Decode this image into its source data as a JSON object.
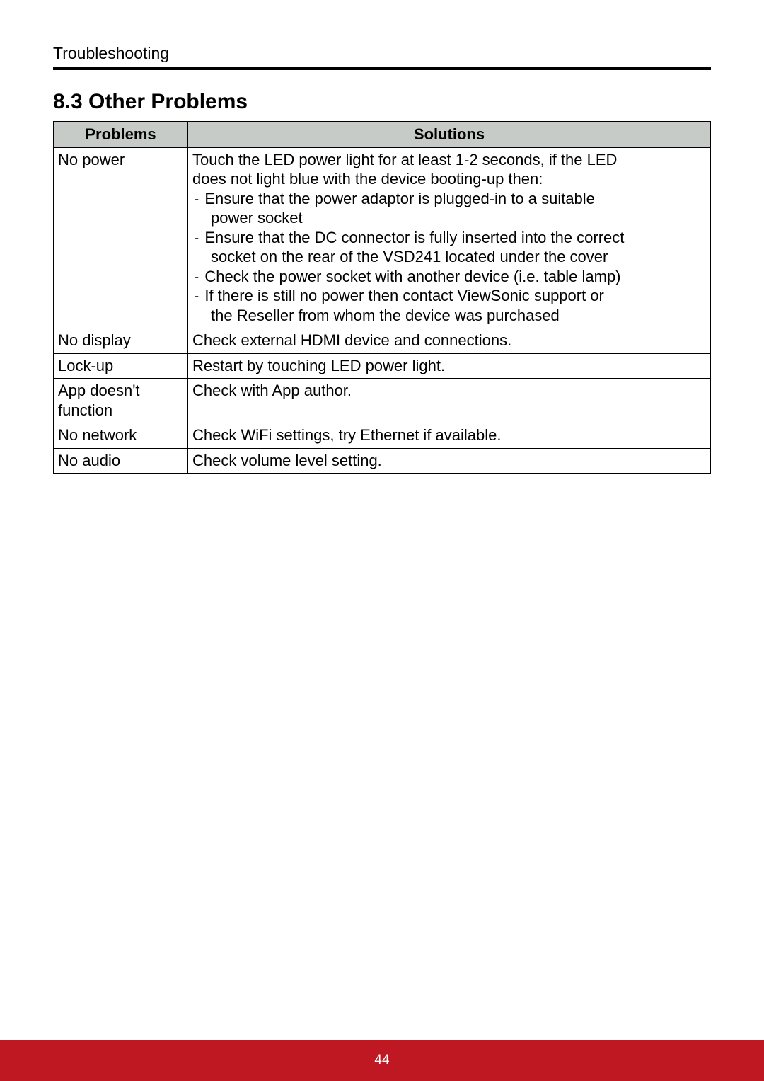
{
  "header": {
    "running_title": "Troubleshooting"
  },
  "section": {
    "heading": "8.3  Other Problems"
  },
  "table": {
    "columns": {
      "problems": "Problems",
      "solutions": "Solutions"
    },
    "header_bg": "#c7cbc7",
    "rows": {
      "no_power": {
        "problem": "No power",
        "intro1": "Touch the LED power light for at least 1-2 seconds, if the LED",
        "intro2": "does not light blue with the device booting-up then:",
        "b1a": "Ensure that the power adaptor is plugged-in to a suitable",
        "b1b": "power socket",
        "b2a": "Ensure that the DC connector is fully inserted into the correct",
        "b2b": "socket on the rear of the VSD241 located under the cover",
        "b3": "Check the power socket with another device (i.e. table lamp)",
        "b4a": "If there is still no power then contact ViewSonic support or",
        "b4b": "the Reseller from whom the device was purchased"
      },
      "no_display": {
        "problem": "No display",
        "solution": "Check external HDMI device and connections."
      },
      "lock_up": {
        "problem": "Lock-up",
        "solution": "Restart by touching LED power light."
      },
      "app": {
        "problem_l1": "App doesn't",
        "problem_l2": "function",
        "solution": "Check with App author."
      },
      "no_network": {
        "problem": "No network",
        "solution": "Check WiFi settings, try Ethernet if available."
      },
      "no_audio": {
        "problem": "No audio",
        "solution": "Check volume level setting."
      }
    }
  },
  "footer": {
    "page_number": "44",
    "bg_color": "#c01823"
  }
}
